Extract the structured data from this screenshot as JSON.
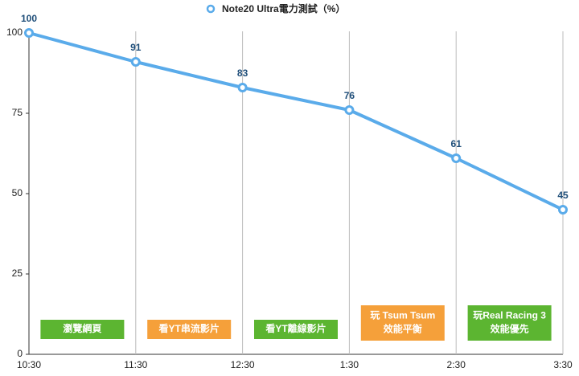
{
  "chart_data": {
    "type": "line",
    "categories": [
      "10:30",
      "11:30",
      "12:30",
      "1:30",
      "2:30",
      "3:30"
    ],
    "series": [
      {
        "name": "Note20 Ultra電力測試（%）",
        "color": "#5aabea",
        "values": [
          100,
          91,
          83,
          76,
          61,
          45
        ]
      }
    ],
    "ylim": [
      0,
      100
    ],
    "yticks": [
      0,
      25,
      50,
      75,
      100
    ],
    "grid": true,
    "legend": "top",
    "value_label_color": "#1f4e79",
    "annotations": [
      {
        "lines": [
          "瀏覽網頁"
        ],
        "color": "#5cb531"
      },
      {
        "lines": [
          "看YT串流影片"
        ],
        "color": "#f5a03a"
      },
      {
        "lines": [
          "看YT離線影片"
        ],
        "color": "#5cb531"
      },
      {
        "lines": [
          "玩 Tsum Tsum",
          "效能平衡"
        ],
        "color": "#f5a03a"
      },
      {
        "lines": [
          "玩Real Racing 3",
          "效能優先"
        ],
        "color": "#5cb531"
      }
    ]
  }
}
